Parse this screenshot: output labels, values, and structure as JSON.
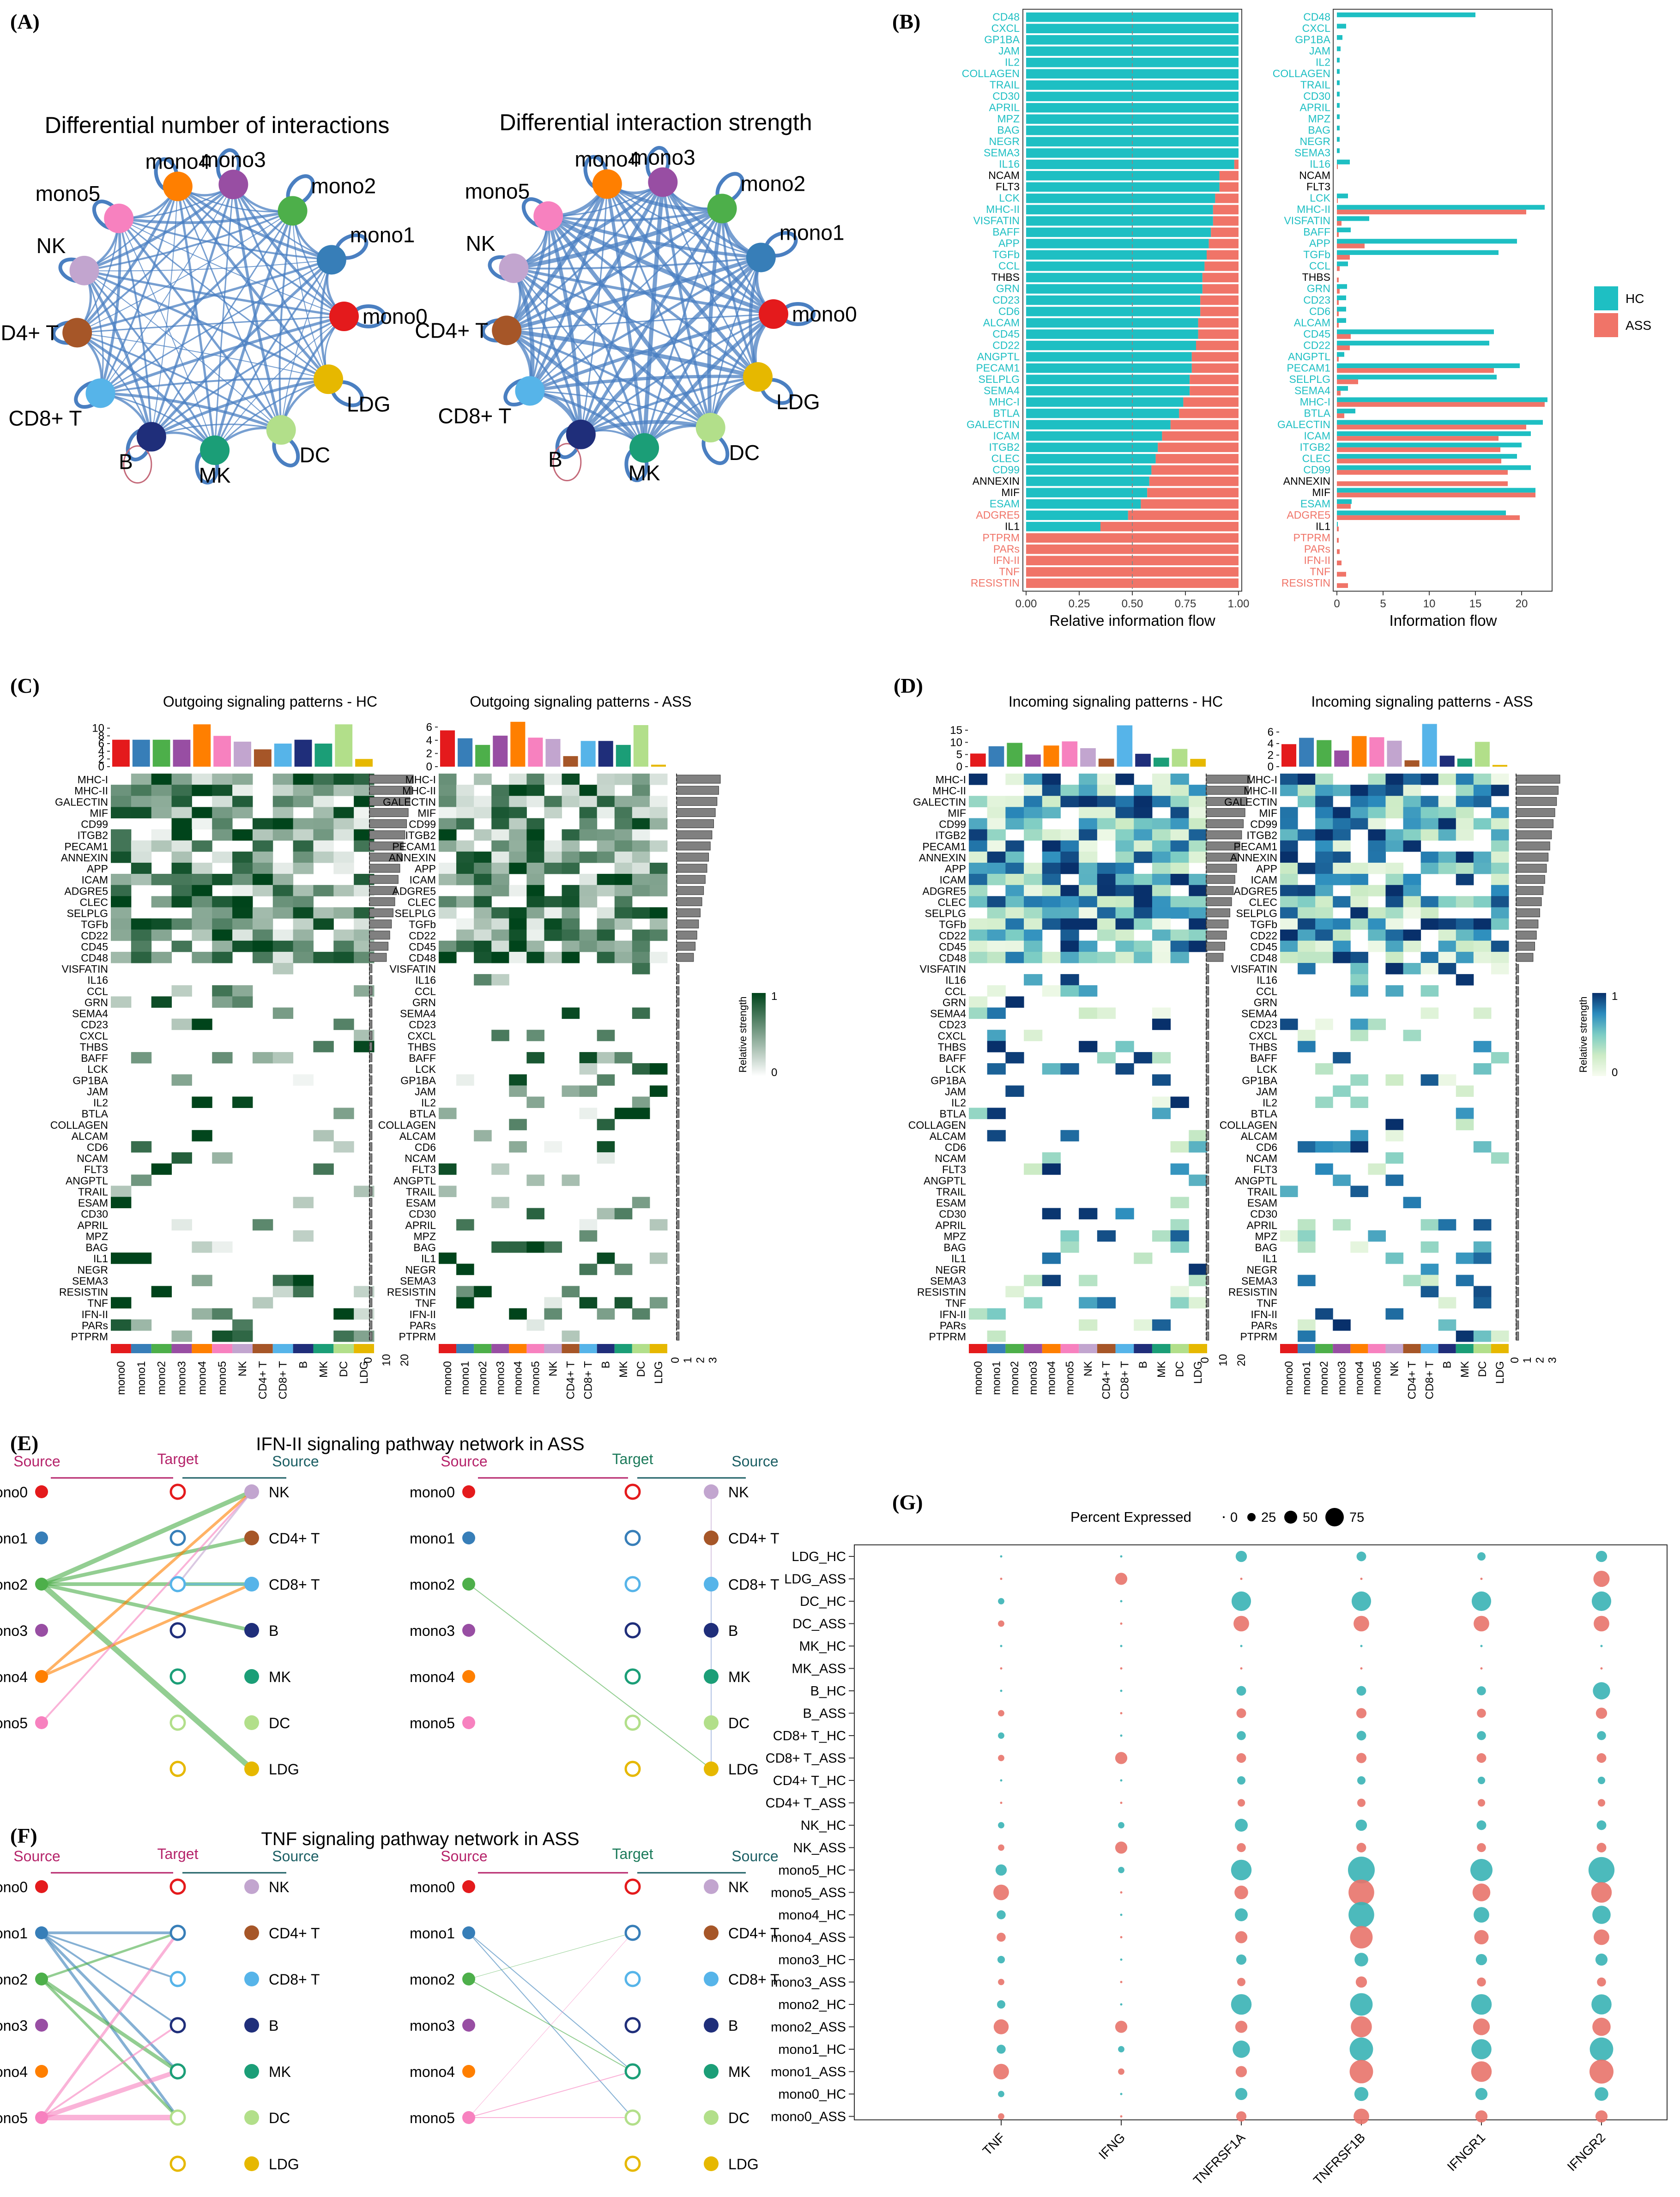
{
  "labels": {
    "A": "(A)",
    "B": "(B)",
    "C": "(C)",
    "D": "(D)",
    "E": "(E)",
    "F": "(F)",
    "G": "(G)"
  },
  "colors": {
    "mono0": "#E41A1C",
    "mono1": "#377EB8",
    "mono2": "#4DAF4A",
    "mono3": "#984EA3",
    "mono4": "#FF7F00",
    "mono5": "#F781BF",
    "NK": "#C2A5CF",
    "CD4+ T": "#A65628",
    "CD8+ T": "#56B4E9",
    "B": "#1F2E7A",
    "MK": "#1B9E77",
    "DC": "#B2DF8A",
    "LDG": "#E6B800",
    "HC": "#1EBFC3",
    "ASS": "#F07468",
    "edge": "#4A7FC1",
    "green_hi": "#00441B",
    "blue_hi": "#08306B"
  },
  "cells": [
    "mono0",
    "mono1",
    "mono2",
    "mono3",
    "mono4",
    "mono5",
    "NK",
    "CD4+ T",
    "CD8+ T",
    "B",
    "MK",
    "DC",
    "LDG"
  ],
  "panelA": {
    "titles": [
      "Differential number of interactions",
      "Differential interaction strength"
    ],
    "cell_order": [
      "mono0",
      "mono1",
      "mono2",
      "mono3",
      "mono4",
      "mono5",
      "NK",
      "CD4+ T",
      "CD8+ T",
      "B",
      "MK",
      "DC",
      "LDG"
    ]
  },
  "chart_data": [
    {
      "type": "bar",
      "id": "B_relative",
      "xlabel": "Relative information flow",
      "ylabel": "",
      "xlim": [
        0,
        1
      ],
      "xticks": [
        "0.00",
        "0.25",
        "0.50",
        "0.75",
        "1.00"
      ],
      "legend": [
        "HC",
        "ASS"
      ],
      "categories": [
        "CD48",
        "CXCL",
        "GP1BA",
        "JAM",
        "IL2",
        "COLLAGEN",
        "TRAIL",
        "CD30",
        "APRIL",
        "MPZ",
        "BAG",
        "NEGR",
        "SEMA3",
        "IL16",
        "NCAM",
        "FLT3",
        "LCK",
        "MHC-II",
        "VISFATIN",
        "BAFF",
        "APP",
        "TGFb",
        "CCL",
        "THBS",
        "GRN",
        "CD23",
        "CD6",
        "ALCAM",
        "CD45",
        "CD22",
        "ANGPTL",
        "PECAM1",
        "SELPLG",
        "SEMA4",
        "MHC-I",
        "BTLA",
        "GALECTIN",
        "ICAM",
        "ITGB2",
        "CLEC",
        "CD99",
        "ANNEXIN",
        "MIF",
        "ESAM",
        "ADGRE5",
        "IL1",
        "PTPRM",
        "PARs",
        "IFN-II",
        "TNF",
        "RESISTIN"
      ],
      "label_group": [
        "HC",
        "HC",
        "HC",
        "HC",
        "HC",
        "HC",
        "HC",
        "HC",
        "HC",
        "HC",
        "HC",
        "HC",
        "HC",
        "HC",
        "none",
        "none",
        "HC",
        "HC",
        "HC",
        "HC",
        "HC",
        "HC",
        "HC",
        "none",
        "HC",
        "HC",
        "HC",
        "HC",
        "HC",
        "HC",
        "HC",
        "HC",
        "HC",
        "HC",
        "HC",
        "HC",
        "HC",
        "HC",
        "HC",
        "HC",
        "HC",
        "none",
        "none",
        "HC",
        "ASS",
        "none",
        "ASS",
        "ASS",
        "ASS",
        "ASS",
        "ASS"
      ],
      "hc_fraction": [
        1,
        1,
        1,
        1,
        1,
        1,
        1,
        1,
        1,
        1,
        1,
        1,
        1,
        0.98,
        0.91,
        0.91,
        0.89,
        0.88,
        0.88,
        0.87,
        0.86,
        0.85,
        0.84,
        0.83,
        0.83,
        0.82,
        0.82,
        0.81,
        0.81,
        0.8,
        0.78,
        0.78,
        0.77,
        0.77,
        0.74,
        0.72,
        0.68,
        0.64,
        0.62,
        0.61,
        0.59,
        0.58,
        0.57,
        0.54,
        0.48,
        0.35,
        0,
        0,
        0,
        0,
        0
      ]
    },
    {
      "type": "bar",
      "id": "B_absolute",
      "xlabel": "Information flow",
      "xlim": [
        0,
        23
      ],
      "xticks": [
        "0",
        "5",
        "10",
        "15",
        "20"
      ],
      "series": [
        {
          "name": "HC",
          "values": [
            15,
            1,
            0.6,
            0.4,
            0.3,
            0.3,
            0.3,
            0.3,
            0.3,
            0.3,
            0.3,
            0.3,
            0.3,
            1.4,
            0,
            0,
            1.2,
            22.5,
            3.5,
            1.5,
            19.5,
            17.5,
            1.2,
            0,
            1.1,
            1,
            1,
            1,
            17,
            16.5,
            0.8,
            19.8,
            17.3,
            1.2,
            22.8,
            2,
            22.3,
            21,
            20,
            19.5,
            21,
            0,
            21.5,
            1.6,
            18.3,
            0.1,
            0,
            0,
            0,
            0,
            0
          ]
        },
        {
          "name": "ASS",
          "values": [
            0,
            0,
            0,
            0,
            0,
            0,
            0,
            0,
            0,
            0,
            0,
            0,
            0,
            0.1,
            0,
            0,
            0.1,
            20.5,
            0.5,
            0.2,
            3,
            1.4,
            0.3,
            0.2,
            0.3,
            0.2,
            0.2,
            0.2,
            1.5,
            1.4,
            0.2,
            17,
            2.3,
            0.4,
            22.5,
            0.8,
            20.5,
            17.5,
            17.7,
            17.8,
            18.5,
            18.5,
            21.5,
            1.5,
            19.8,
            0.2,
            0.2,
            0.3,
            0.5,
            1,
            1.2
          ]
        }
      ]
    },
    {
      "type": "heatmap",
      "id": "C_D",
      "pathways": [
        "MHC-I",
        "MHC-II",
        "GALECTIN",
        "MIF",
        "CD99",
        "ITGB2",
        "PECAM1",
        "ANNEXIN",
        "APP",
        "ICAM",
        "ADGRE5",
        "CLEC",
        "SELPLG",
        "TGFb",
        "CD22",
        "CD45",
        "CD48",
        "VISFATIN",
        "IL16",
        "CCL",
        "GRN",
        "SEMA4",
        "CD23",
        "CXCL",
        "THBS",
        "BAFF",
        "LCK",
        "GP1BA",
        "JAM",
        "IL2",
        "BTLA",
        "COLLAGEN",
        "ALCAM",
        "CD6",
        "NCAM",
        "FLT3",
        "ANGPTL",
        "TRAIL",
        "ESAM",
        "CD30",
        "APRIL",
        "MPZ",
        "BAG",
        "IL1",
        "NEGR",
        "SEMA3",
        "RESISTIN",
        "TNF",
        "IFN-II",
        "PARs",
        "PTPRM"
      ],
      "columns": [
        "mono0",
        "mono1",
        "mono2",
        "mono3",
        "mono4",
        "mono5",
        "NK",
        "CD4+ T",
        "CD8+ T",
        "B",
        "MK",
        "DC",
        "LDG"
      ],
      "panels": [
        {
          "title": "Outgoing signaling patterns - HC",
          "top_values": [
            7,
            7,
            7,
            7,
            11,
            8,
            6.5,
            4.5,
            6,
            7,
            6,
            11,
            2
          ],
          "top_ticks": [
            "0",
            "2",
            "4",
            "6",
            "8",
            "10"
          ],
          "top_max": 12,
          "right_ticks": [
            "0",
            "10",
            "20"
          ],
          "right_max": 24
        },
        {
          "title": "Outgoing signaling patterns - ASS",
          "top_values": [
            5.5,
            4.3,
            3.3,
            4.7,
            6.8,
            4.4,
            4.2,
            1.6,
            3.9,
            3.9,
            3.3,
            6.3,
            0.3
          ],
          "top_ticks": [
            "0",
            "2",
            "4",
            "6"
          ],
          "top_max": 7,
          "right_ticks": [
            "0",
            "1",
            "2",
            "3"
          ],
          "right_max": 3.5
        },
        {
          "title": "Incoming signaling patterns - HC",
          "top_values": [
            5.4,
            8.4,
            9.8,
            5,
            8.7,
            10.4,
            7.6,
            3.3,
            17,
            5.3,
            3.7,
            7.3,
            3.2
          ],
          "top_ticks": [
            "0",
            "5",
            "10",
            "15"
          ],
          "top_max": 19,
          "right_ticks": [
            "0",
            "10",
            "20"
          ],
          "right_max": 24
        },
        {
          "title": "Incoming signaling patterns - ASS",
          "top_values": [
            3.9,
            5,
            4.6,
            2.8,
            5.3,
            5.1,
            4.5,
            1.1,
            7.4,
            1.9,
            1.4,
            4.3,
            0.3
          ],
          "top_ticks": [
            "0",
            "2",
            "4",
            "6"
          ],
          "top_max": 8,
          "right_ticks": [
            "0",
            "1",
            "2",
            "3"
          ],
          "right_max": 3.5
        }
      ],
      "legend_title": "Relative strength",
      "legend_ticks": [
        "0",
        "1"
      ]
    },
    {
      "type": "scatter",
      "id": "G_dotplot",
      "genes": [
        "TNF",
        "IFNG",
        "TNFRSF1A",
        "TNFRSF1B",
        "IFNGR1",
        "IFNGR2"
      ],
      "rows": [
        "LDG_HC",
        "LDG_ASS",
        "DC_HC",
        "DC_ASS",
        "MK_HC",
        "MK_ASS",
        "B_HC",
        "B_ASS",
        "CD8+ T_HC",
        "CD8+ T_ASS",
        "CD4+ T_HC",
        "CD4+ T_ASS",
        "NK_HC",
        "NK_ASS",
        "mono5_HC",
        "mono5_ASS",
        "mono4_HC",
        "mono4_ASS",
        "mono3_HC",
        "mono3_ASS",
        "mono2_HC",
        "mono2_ASS",
        "mono1_HC",
        "mono1_ASS",
        "mono0_HC",
        "mono0_ASS"
      ],
      "percent": [
        [
          0,
          0,
          8,
          5,
          3,
          8
        ],
        [
          0,
          10,
          0,
          0,
          0,
          22
        ],
        [
          1,
          0,
          35,
          35,
          35,
          35
        ],
        [
          1,
          0,
          20,
          20,
          20,
          20
        ],
        [
          0,
          0,
          0,
          0,
          0,
          0
        ],
        [
          0,
          0,
          0,
          0,
          0,
          0
        ],
        [
          0,
          0,
          5,
          5,
          4,
          26
        ],
        [
          1,
          0,
          5,
          6,
          4,
          8
        ],
        [
          1,
          0,
          4,
          5,
          4,
          4
        ],
        [
          1,
          10,
          5,
          6,
          5,
          5
        ],
        [
          0,
          0,
          3,
          3,
          2,
          2
        ],
        [
          0,
          0,
          2,
          3,
          2,
          2
        ],
        [
          1,
          1,
          12,
          8,
          5,
          5
        ],
        [
          1,
          10,
          4,
          5,
          4,
          5
        ],
        [
          8,
          1,
          40,
          75,
          48,
          70
        ],
        [
          20,
          0,
          14,
          68,
          28,
          40
        ],
        [
          4,
          0,
          12,
          68,
          20,
          30
        ],
        [
          4,
          0,
          10,
          50,
          16,
          20
        ],
        [
          2,
          0,
          6,
          14,
          8,
          10
        ],
        [
          1,
          0,
          3,
          8,
          4,
          4
        ],
        [
          3,
          0,
          40,
          50,
          40,
          38
        ],
        [
          18,
          10,
          10,
          42,
          24,
          30
        ],
        [
          4,
          1,
          26,
          55,
          38,
          55
        ],
        [
          20,
          1,
          8,
          55,
          40,
          58
        ],
        [
          1,
          0,
          10,
          15,
          10,
          14
        ],
        [
          1,
          0,
          6,
          20,
          10,
          10
        ]
      ],
      "legend_title": "Percent Expressed",
      "legend_ticks": [
        "0",
        "25",
        "50",
        "75"
      ]
    },
    {
      "type": "table",
      "id": "EF_networks",
      "panels": [
        {
          "title": "IFN-II signaling pathway network in ASS",
          "header": [
            "Source",
            "Target",
            "Source"
          ],
          "edges_left": [
            [
              "mono2",
              "NK",
              10
            ],
            [
              "mono2",
              "CD4+ T",
              8
            ],
            [
              "mono2",
              "CD8+ T",
              8
            ],
            [
              "mono2",
              "LDG",
              12
            ],
            [
              "mono2",
              "B",
              8
            ],
            [
              "mono4",
              "NK",
              6
            ],
            [
              "mono4",
              "CD8+ T",
              6
            ],
            [
              "mono5",
              "NK",
              4
            ],
            [
              "CD8+ T",
              "mono2",
              5
            ],
            [
              "NK",
              "mono2",
              4
            ]
          ],
          "edges_right": [
            [
              "mono2",
              "LDG",
              2
            ],
            [
              "NK",
              "LDG",
              2
            ],
            [
              "CD8+ T",
              "LDG",
              1
            ]
          ]
        },
        {
          "title": "TNF signaling pathway network in ASS",
          "header": [
            "Source",
            "Target",
            "Source"
          ],
          "edges_left": [
            [
              "mono1",
              "mono1",
              6
            ],
            [
              "mono1",
              "mono2",
              4
            ],
            [
              "mono1",
              "mono4",
              6
            ],
            [
              "mono1",
              "mono5",
              6
            ],
            [
              "mono1",
              "mono3",
              4
            ],
            [
              "mono2",
              "mono1",
              5
            ],
            [
              "mono2",
              "mono4",
              8
            ],
            [
              "mono2",
              "mono5",
              6
            ],
            [
              "mono5",
              "mono1",
              6
            ],
            [
              "mono5",
              "mono4",
              10
            ],
            [
              "mono5",
              "mono5",
              12
            ],
            [
              "mono5",
              "mono3",
              4
            ]
          ],
          "edges_right": [
            [
              "mono1",
              "mono4",
              2
            ],
            [
              "mono1",
              "mono5",
              2
            ],
            [
              "mono2",
              "mono1",
              1
            ],
            [
              "mono2",
              "mono4",
              2
            ],
            [
              "mono5",
              "mono1",
              1
            ],
            [
              "mono5",
              "mono4",
              2
            ],
            [
              "mono5",
              "mono5",
              2
            ]
          ]
        }
      ],
      "target_nodes": [
        "mono0",
        "mono1",
        "mono2",
        "mono3",
        "mono4",
        "mono5"
      ],
      "source_right": [
        "NK",
        "CD4+ T",
        "CD8+ T",
        "B",
        "MK",
        "DC",
        "LDG"
      ]
    }
  ]
}
